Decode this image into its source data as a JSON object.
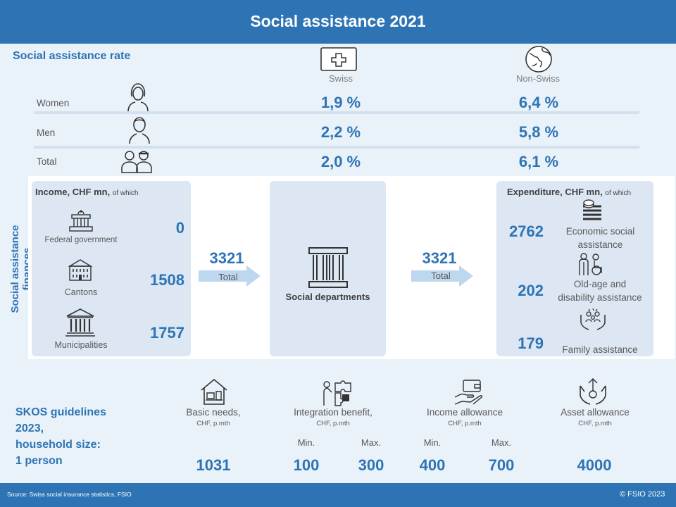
{
  "title": "Social assistance 2021",
  "rate": {
    "heading": "Social assistance rate",
    "col_swiss": "Swiss",
    "col_nonswiss": "Non-Swiss",
    "rows": [
      {
        "label": "Women",
        "swiss": "1,9 %",
        "nonswiss": "6,4 %"
      },
      {
        "label": "Men",
        "swiss": "2,2 %",
        "nonswiss": "5,8 %"
      },
      {
        "label": "Total",
        "swiss": "2,0 %",
        "nonswiss": "6,1 %"
      }
    ]
  },
  "finances": {
    "side_label": "Social assistance finances",
    "income_heading": "Income, CHF mn,",
    "income_suffix": "of which",
    "income": [
      {
        "label": "Federal government",
        "value": "0",
        "icon": "parliament-icon"
      },
      {
        "label": "Cantons",
        "value": "1508",
        "icon": "canton-building-icon"
      },
      {
        "label": "Municipalities",
        "value": "1757",
        "icon": "town-hall-icon"
      }
    ],
    "income_total": "3321",
    "income_total_label": "Total",
    "center_label": "Social departments",
    "expenditure_total": "3321",
    "expenditure_total_label": "Total",
    "expenditure_heading": "Expenditure, CHF mn,",
    "expenditure_suffix": "of which",
    "expenditure": [
      {
        "label_line1": "Economic social",
        "label_line2": "assistance",
        "value": "2762",
        "icon": "money-stack-icon"
      },
      {
        "label_line1": "Old-age and",
        "label_line2": "disability assistance",
        "value": "202",
        "icon": "elderly-wheelchair-icon"
      },
      {
        "label_line1": "Family assistance",
        "label_line2": "",
        "value": "179",
        "icon": "family-hands-icon"
      }
    ]
  },
  "skos": {
    "heading_lines": [
      "SKOS guidelines",
      "2023,",
      "household size:",
      "1 person"
    ],
    "basic": {
      "label": "Basic needs,",
      "sub": "CHF, p.mth",
      "value": "1031"
    },
    "integration": {
      "label": "Integration benefit,",
      "sub": "CHF, p.mth",
      "min_label": "Min.",
      "max_label": "Max.",
      "min": "100",
      "max": "300"
    },
    "income": {
      "label": "Income allowance",
      "sub": "CHF, p.mth",
      "min_label": "Min.",
      "max_label": "Max.",
      "min": "400",
      "max": "700"
    },
    "asset": {
      "label": "Asset allowance",
      "sub": "CHF, p.mth",
      "value": "4000"
    }
  },
  "footer": {
    "source": "Source: Swiss social insurance statistics, FSIO",
    "copyright": "© FSIO 2023"
  },
  "colors": {
    "accent": "#2e74b5",
    "panel": "#dce7f3",
    "background": "#e9f1f9"
  }
}
